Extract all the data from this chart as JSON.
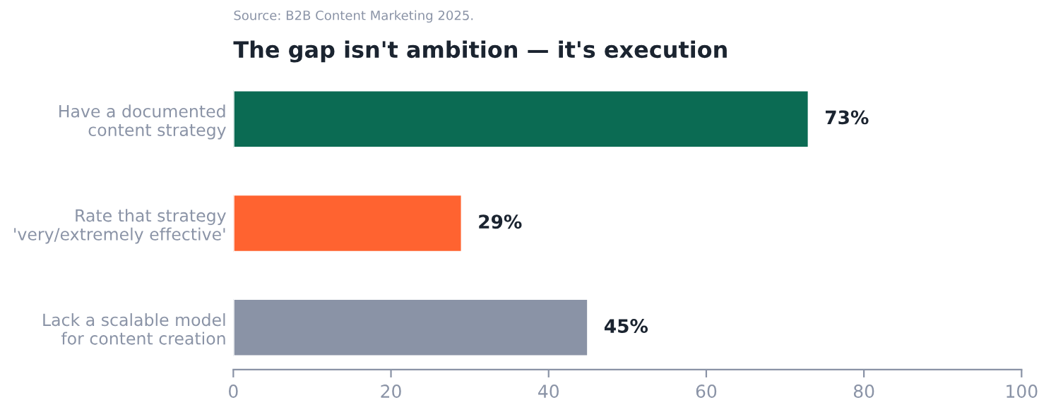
{
  "chart_data": {
    "type": "bar",
    "orientation": "horizontal",
    "title": "The gap isn't ambition — it's execution",
    "annotations": [
      "Source: B2B Content Marketing 2025."
    ],
    "categories": [
      "Have a documented\ncontent strategy",
      "Rate that strategy\n'very/extremely effective'",
      "Lack a scalable model\nfor content creation"
    ],
    "values": [
      73,
      29,
      45
    ],
    "colors": [
      "#0b6b53",
      "#ff6330",
      "#8a93a6"
    ],
    "value_labels": [
      "73%",
      "29%",
      "45%"
    ],
    "xlim": [
      0,
      100
    ],
    "xticks": [
      0,
      20,
      40,
      60,
      80,
      100
    ],
    "grid": false,
    "legend": false
  }
}
